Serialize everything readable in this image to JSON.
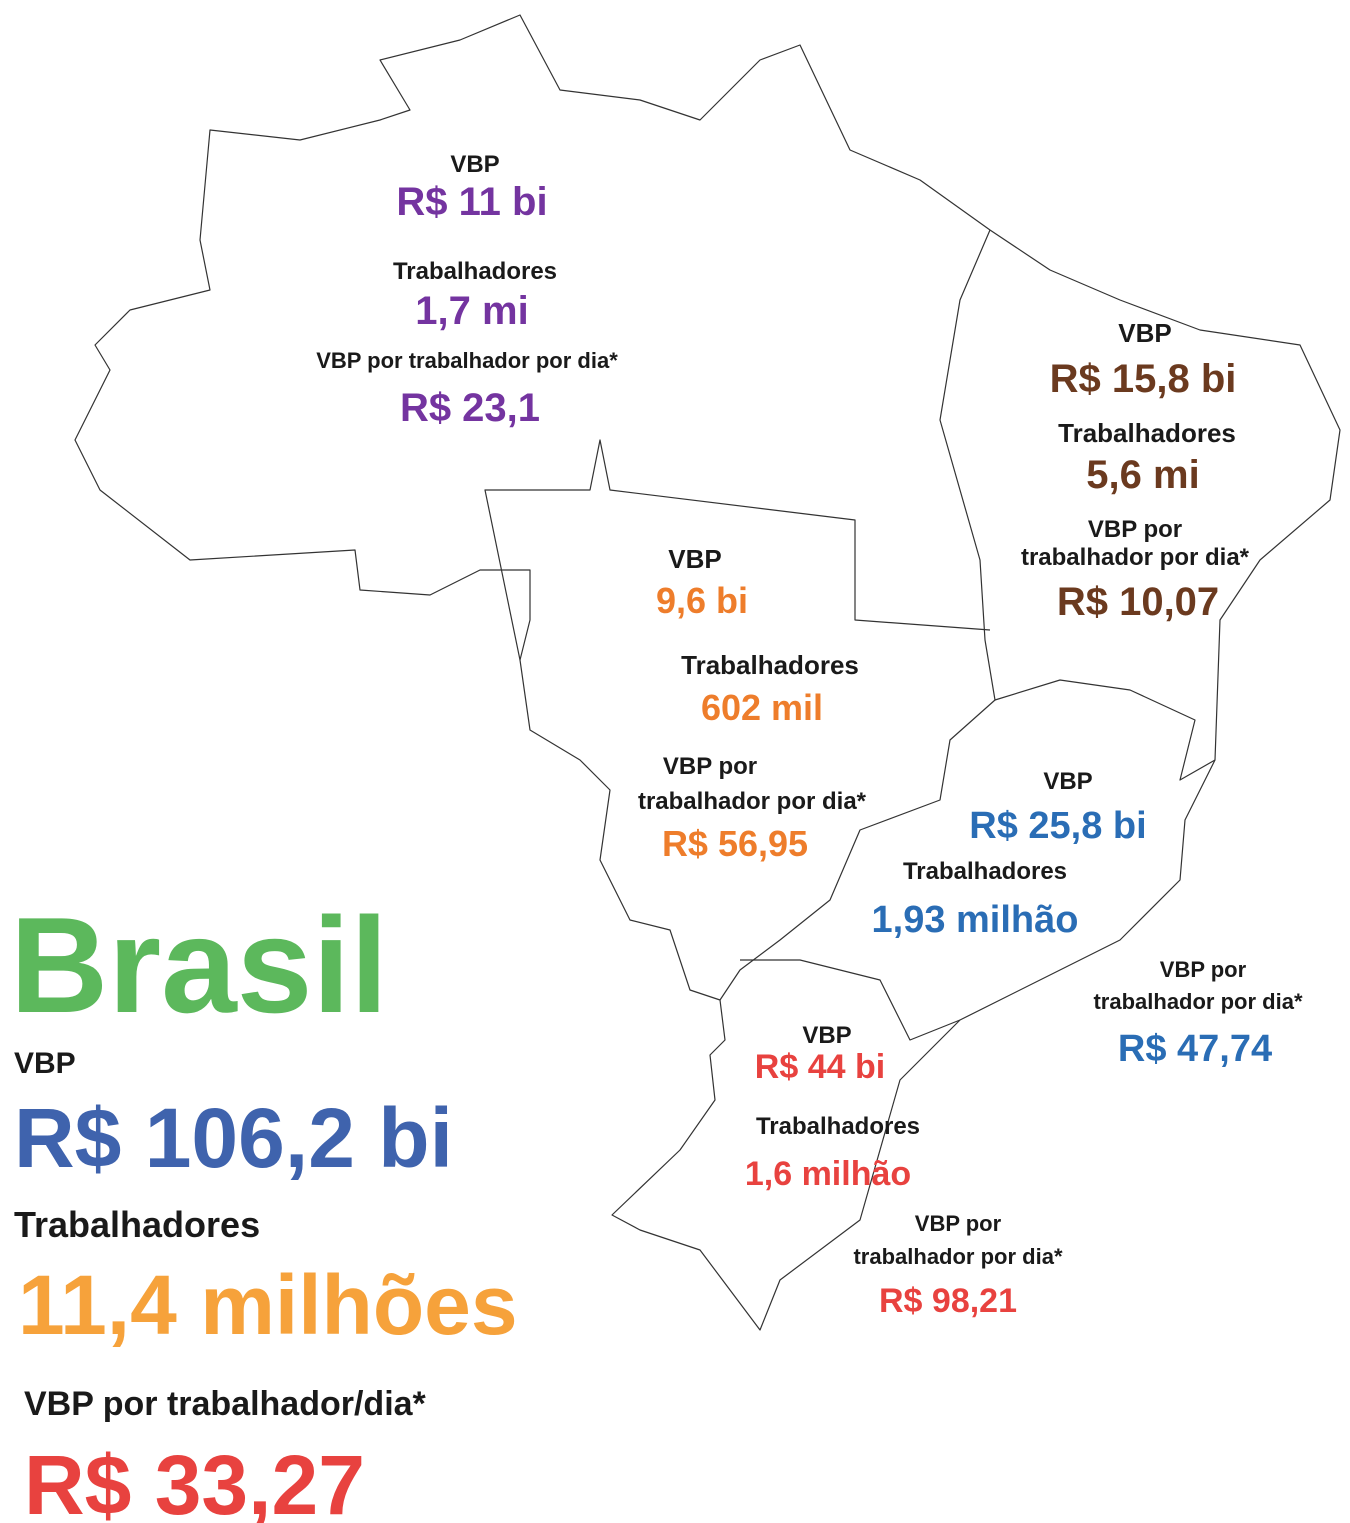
{
  "regions": [
    {
      "vbp_label": "VBP",
      "vbp": "R$ 11 bi",
      "workers_label": "Trabalhadores",
      "workers": "1,7 mi",
      "per_day_label": [
        "VBP por trabalhador por dia*"
      ],
      "per_day": "R$ 23,1",
      "color": "#7434a0"
    },
    {
      "vbp_label": "VBP",
      "vbp": "R$ 15,8 bi",
      "workers_label": "Trabalhadores",
      "workers": "5,6 mi",
      "per_day_label": [
        "VBP por",
        "trabalhador por dia*"
      ],
      "per_day": "R$ 10,07",
      "color": "#6b3a1f"
    },
    {
      "vbp_label": "VBP",
      "vbp": "9,6 bi",
      "workers_label": "Trabalhadores",
      "workers": "602 mil",
      "per_day_label": [
        "VBP por",
        "trabalhador por dia*"
      ],
      "per_day": "R$ 56,95",
      "color": "#ee7d2b"
    },
    {
      "vbp_label": "VBP",
      "vbp": "R$ 25,8 bi",
      "workers_label": "Trabalhadores",
      "workers": "1,93 milhão",
      "per_day_label": [
        "VBP por",
        "trabalhador por dia*"
      ],
      "per_day": "R$ 47,74",
      "color": "#2a6db5"
    },
    {
      "vbp_label": "VBP",
      "vbp": "R$ 44 bi",
      "workers_label": "Trabalhadores",
      "workers": "1,6 milhão",
      "per_day_label": [
        "VBP por",
        "trabalhador por dia*"
      ],
      "per_day": "R$ 98,21",
      "color": "#e8423f"
    }
  ],
  "brasil": {
    "title": "Brasil",
    "title_color": "#5cb85c",
    "vbp_label": "VBP",
    "vbp": "R$ 106,2 bi",
    "vbp_color": "#3f63ad",
    "workers_label": "Trabalhadores",
    "workers": "11,4 milhões",
    "workers_color": "#f6a23b",
    "per_day_label": "VBP por trabalhador/dia*",
    "per_day": "R$ 33,27",
    "per_day_color": "#e8423f"
  }
}
